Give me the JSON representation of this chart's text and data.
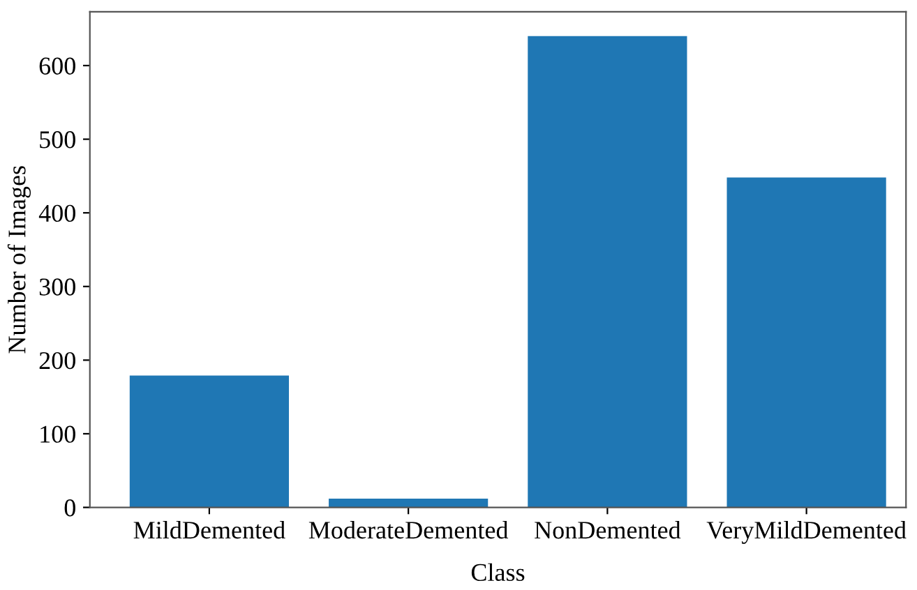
{
  "chart_data": {
    "type": "bar",
    "xlabel": "Class",
    "ylabel": "Number of Images",
    "categories": [
      "MildDemented",
      "ModerateDemented",
      "NonDemented",
      "VeryMildDemented"
    ],
    "values": [
      179,
      12,
      640,
      448
    ],
    "color": "#1f77b4",
    "ylim": [
      0,
      673
    ],
    "yticks": [
      0,
      100,
      200,
      300,
      400,
      500,
      600
    ],
    "grid": false
  }
}
